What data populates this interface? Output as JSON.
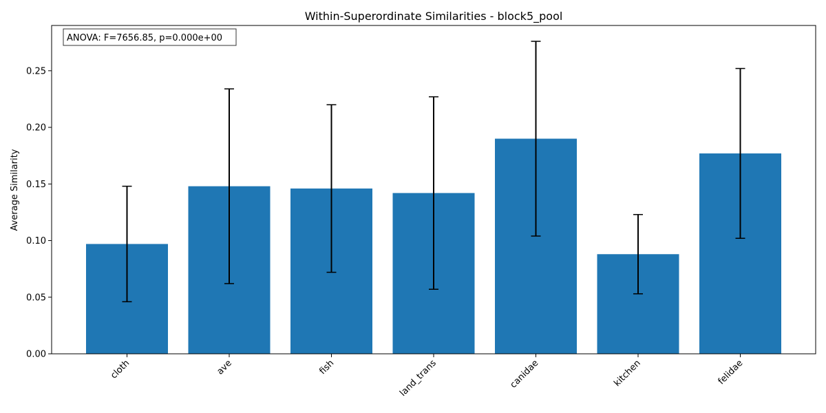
{
  "chart_data": {
    "type": "bar",
    "title": "Within-Superordinate Similarities - block5_pool",
    "xlabel": "",
    "ylabel": "Average Similarity",
    "categories": [
      "cloth",
      "ave",
      "fish",
      "land_trans",
      "canidae",
      "kitchen",
      "felidae"
    ],
    "values": [
      0.097,
      0.148,
      0.146,
      0.142,
      0.19,
      0.088,
      0.177
    ],
    "errors": [
      0.051,
      0.086,
      0.074,
      0.085,
      0.086,
      0.035,
      0.075
    ],
    "ylim": [
      0,
      0.29
    ],
    "yticks": [
      0.0,
      0.05,
      0.1,
      0.15,
      0.2,
      0.25
    ],
    "ytick_labels": [
      "0.00",
      "0.05",
      "0.10",
      "0.15",
      "0.20",
      "0.25"
    ],
    "annotation": "ANOVA: F=7656.85, p=0.000e+00",
    "bar_color": "#1f77b4",
    "error_color": "#000000",
    "grid": false
  }
}
